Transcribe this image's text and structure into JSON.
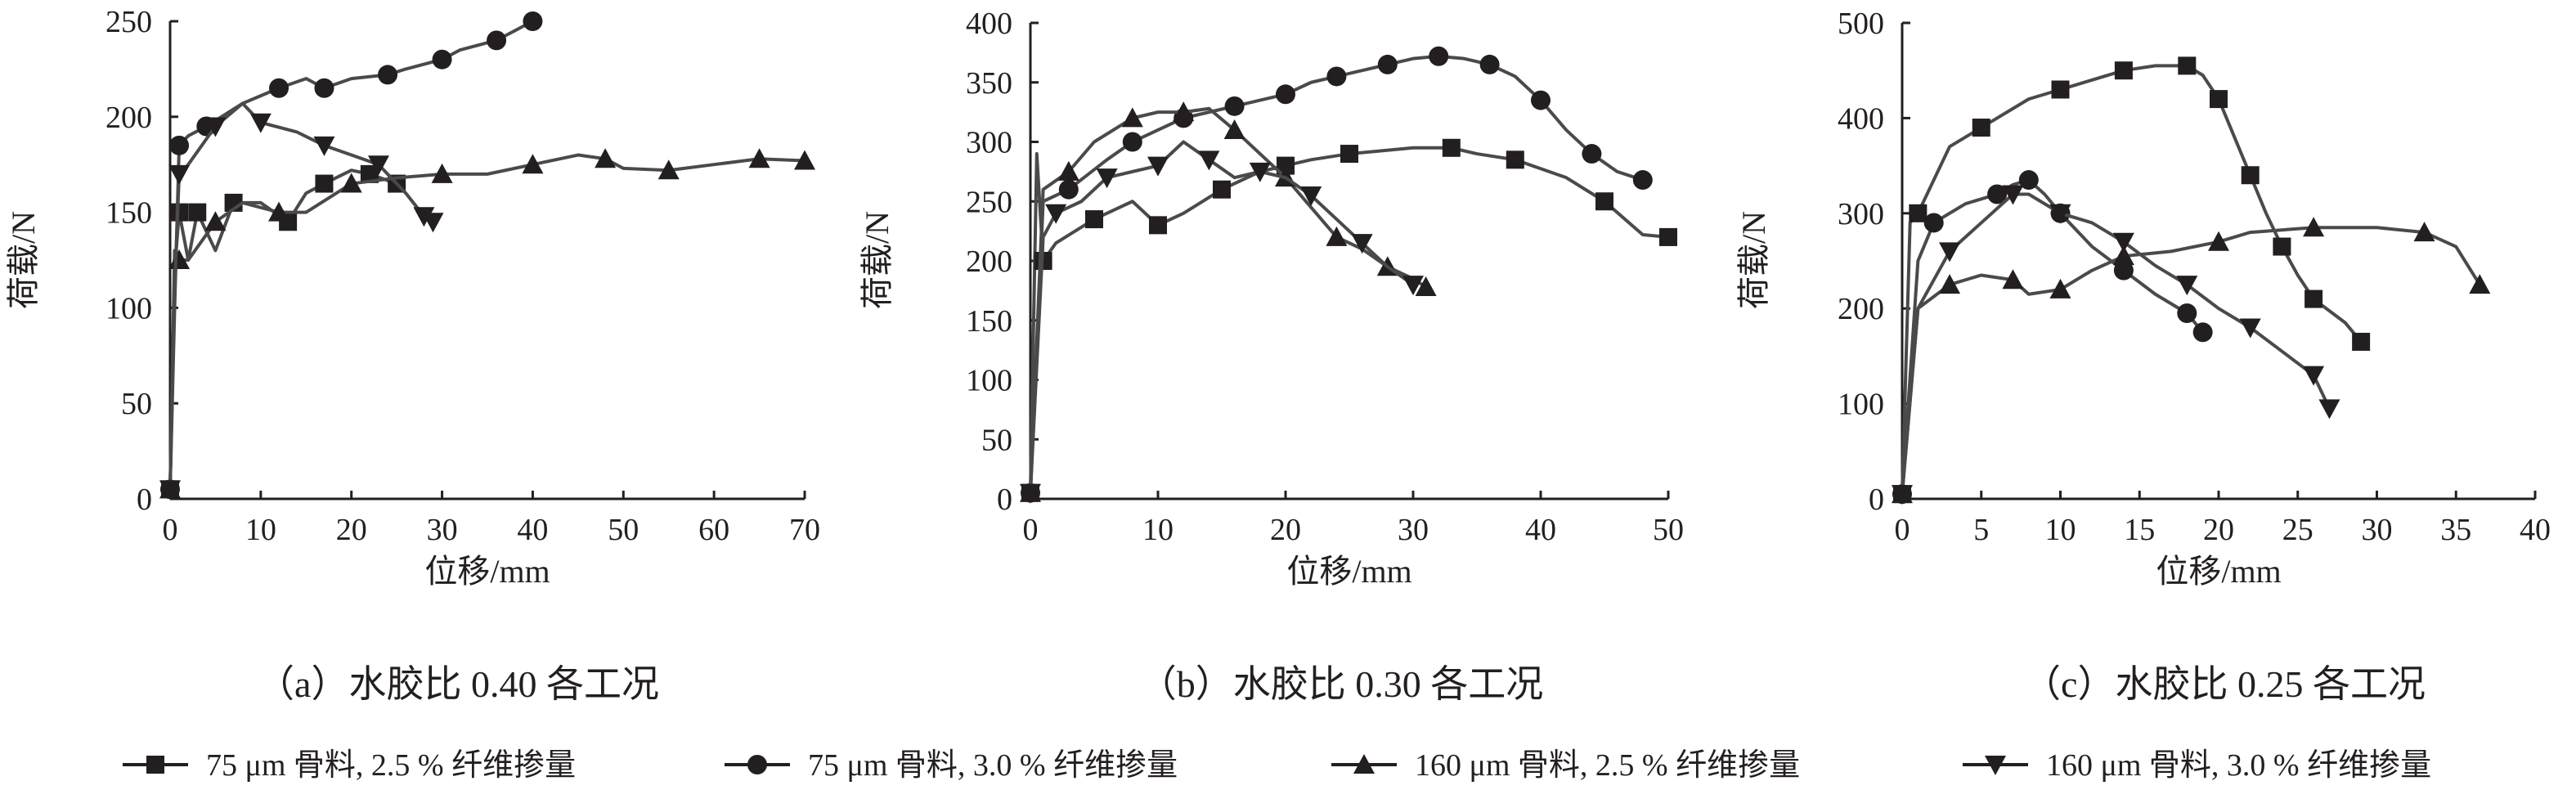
{
  "legend": [
    {
      "label": "75 μm 骨料, 2.5 % 纤维掺量",
      "marker": "square"
    },
    {
      "label": "75 μm 骨料, 3.0 % 纤维掺量",
      "marker": "circle"
    },
    {
      "label": "160 μm 骨料, 2.5 % 纤维掺量",
      "marker": "triangle"
    },
    {
      "label": "160 μm 骨料, 3.0 % 纤维掺量",
      "marker": "triangle-down"
    }
  ],
  "colors": {
    "line": "#4a4a4a",
    "marker": "#231f20",
    "axis": "#231f20"
  },
  "chart_data": [
    {
      "type": "line",
      "caption": "（a）水胶比 0.40 各工况",
      "xlabel": "位移/mm",
      "ylabel": "荷载/N",
      "xlim": [
        0,
        70
      ],
      "ylim": [
        0,
        250
      ],
      "xticks": [
        0,
        10,
        20,
        30,
        40,
        50,
        60,
        70
      ],
      "yticks": [
        0,
        50,
        100,
        150,
        200,
        250
      ],
      "grid": false,
      "series": [
        {
          "name": "75 μm 骨料, 2.5 % 纤维掺量",
          "marker": "square",
          "points": [
            [
              0,
              5
            ],
            [
              0.5,
              120
            ],
            [
              1,
              150
            ],
            [
              2,
              125
            ],
            [
              3,
              150
            ],
            [
              5,
              130
            ],
            [
              7,
              155
            ],
            [
              10,
              155
            ],
            [
              13,
              145
            ],
            [
              15,
              160
            ],
            [
              17,
              165
            ],
            [
              20,
              172
            ],
            [
              22,
              170
            ],
            [
              25,
              165
            ]
          ]
        },
        {
          "name": "75 μm 骨料, 3.0 % 纤维掺量",
          "marker": "circle",
          "points": [
            [
              0,
              5
            ],
            [
              0.5,
              100
            ],
            [
              1,
              185
            ],
            [
              2,
              190
            ],
            [
              4,
              195
            ],
            [
              8,
              207
            ],
            [
              12,
              215
            ],
            [
              15,
              220
            ],
            [
              17,
              215
            ],
            [
              20,
              220
            ],
            [
              24,
              222
            ],
            [
              26,
              225
            ],
            [
              30,
              230
            ],
            [
              32,
              235
            ],
            [
              36,
              240
            ],
            [
              40,
              250
            ]
          ]
        },
        {
          "name": "160 μm 骨料, 2.5 % 纤维掺量",
          "marker": "triangle",
          "points": [
            [
              0,
              5
            ],
            [
              0.5,
              130
            ],
            [
              1,
              125
            ],
            [
              2,
              125
            ],
            [
              5,
              145
            ],
            [
              8,
              155
            ],
            [
              12,
              150
            ],
            [
              15,
              150
            ],
            [
              20,
              165
            ],
            [
              25,
              168
            ],
            [
              30,
              170
            ],
            [
              35,
              170
            ],
            [
              40,
              175
            ],
            [
              45,
              180
            ],
            [
              48,
              178
            ],
            [
              50,
              173
            ],
            [
              55,
              172
            ],
            [
              60,
              175
            ],
            [
              65,
              178
            ],
            [
              70,
              177
            ]
          ]
        },
        {
          "name": "160 μm 骨料, 3.0 % 纤维掺量",
          "marker": "triangle-down",
          "points": [
            [
              0,
              5
            ],
            [
              0.5,
              110
            ],
            [
              1,
              170
            ],
            [
              2,
              175
            ],
            [
              5,
              195
            ],
            [
              8,
              207
            ],
            [
              10,
              197
            ],
            [
              14,
              192
            ],
            [
              17,
              185
            ],
            [
              20,
              180
            ],
            [
              23,
              175
            ],
            [
              26,
              160
            ],
            [
              28,
              148
            ],
            [
              29,
              145
            ]
          ]
        }
      ]
    },
    {
      "type": "line",
      "caption": "（b）水胶比 0.30 各工况",
      "xlabel": "位移/mm",
      "ylabel": "荷载/N",
      "xlim": [
        0,
        50
      ],
      "ylim": [
        0,
        400
      ],
      "xticks": [
        0,
        10,
        20,
        30,
        40,
        50
      ],
      "yticks": [
        0,
        50,
        100,
        150,
        200,
        250,
        300,
        350,
        400
      ],
      "grid": false,
      "series": [
        {
          "name": "75 μm 骨料, 2.5 % 纤维掺量",
          "marker": "square",
          "points": [
            [
              0,
              5
            ],
            [
              0.5,
              290
            ],
            [
              1,
              200
            ],
            [
              2,
              215
            ],
            [
              5,
              235
            ],
            [
              8,
              250
            ],
            [
              10,
              230
            ],
            [
              12,
              240
            ],
            [
              15,
              260
            ],
            [
              18,
              275
            ],
            [
              20,
              280
            ],
            [
              22,
              285
            ],
            [
              25,
              290
            ],
            [
              30,
              295
            ],
            [
              33,
              295
            ],
            [
              35,
              290
            ],
            [
              38,
              285
            ],
            [
              42,
              270
            ],
            [
              45,
              250
            ],
            [
              48,
              222
            ],
            [
              50,
              220
            ]
          ]
        },
        {
          "name": "75 μm 骨料, 3.0 % 纤维掺量",
          "marker": "circle",
          "points": [
            [
              0,
              5
            ],
            [
              1,
              250
            ],
            [
              3,
              260
            ],
            [
              6,
              285
            ],
            [
              8,
              300
            ],
            [
              10,
              310
            ],
            [
              12,
              320
            ],
            [
              14,
              325
            ],
            [
              16,
              330
            ],
            [
              18,
              335
            ],
            [
              20,
              340
            ],
            [
              22,
              350
            ],
            [
              24,
              355
            ],
            [
              26,
              360
            ],
            [
              28,
              365
            ],
            [
              30,
              370
            ],
            [
              32,
              372
            ],
            [
              34,
              370
            ],
            [
              36,
              365
            ],
            [
              38,
              355
            ],
            [
              40,
              335
            ],
            [
              42,
              310
            ],
            [
              44,
              290
            ],
            [
              46,
              275
            ],
            [
              48,
              268
            ]
          ]
        },
        {
          "name": "160 μm 骨料, 2.5 % 纤维掺量",
          "marker": "triangle",
          "points": [
            [
              0,
              5
            ],
            [
              1,
              260
            ],
            [
              3,
              275
            ],
            [
              5,
              300
            ],
            [
              8,
              320
            ],
            [
              10,
              325
            ],
            [
              12,
              325
            ],
            [
              14,
              328
            ],
            [
              16,
              310
            ],
            [
              18,
              290
            ],
            [
              20,
              270
            ],
            [
              22,
              245
            ],
            [
              24,
              220
            ],
            [
              26,
              210
            ],
            [
              28,
              195
            ],
            [
              30,
              185
            ],
            [
              31,
              178
            ]
          ]
        },
        {
          "name": "160 μm 骨料, 3.0 % 纤维掺量",
          "marker": "triangle-down",
          "points": [
            [
              0,
              5
            ],
            [
              1,
              220
            ],
            [
              2,
              240
            ],
            [
              4,
              250
            ],
            [
              6,
              270
            ],
            [
              8,
              275
            ],
            [
              10,
              280
            ],
            [
              12,
              300
            ],
            [
              14,
              285
            ],
            [
              16,
              270
            ],
            [
              18,
              275
            ],
            [
              20,
              270
            ],
            [
              22,
              255
            ],
            [
              24,
              235
            ],
            [
              26,
              215
            ],
            [
              28,
              195
            ],
            [
              30,
              180
            ]
          ]
        }
      ]
    },
    {
      "type": "line",
      "caption": "（c）水胶比 0.25 各工况",
      "xlabel": "位移/mm",
      "ylabel": "荷载/N",
      "xlim": [
        0,
        40
      ],
      "ylim": [
        0,
        500
      ],
      "xticks": [
        0,
        5,
        10,
        15,
        20,
        25,
        30,
        35,
        40
      ],
      "yticks": [
        0,
        100,
        200,
        300,
        400,
        500
      ],
      "grid": false,
      "series": [
        {
          "name": "75 μm 骨料, 2.5 % 纤维掺量",
          "marker": "square",
          "points": [
            [
              0,
              5
            ],
            [
              0.5,
              290
            ],
            [
              1,
              300
            ],
            [
              3,
              370
            ],
            [
              5,
              390
            ],
            [
              8,
              420
            ],
            [
              10,
              430
            ],
            [
              12,
              440
            ],
            [
              14,
              450
            ],
            [
              16,
              455
            ],
            [
              18,
              455
            ],
            [
              19,
              445
            ],
            [
              20,
              420
            ],
            [
              21,
              380
            ],
            [
              22,
              340
            ],
            [
              23,
              300
            ],
            [
              24,
              265
            ],
            [
              25,
              235
            ],
            [
              26,
              210
            ],
            [
              28,
              185
            ],
            [
              29,
              165
            ]
          ]
        },
        {
          "name": "75 μm 骨料, 3.0 % 纤维掺量",
          "marker": "circle",
          "points": [
            [
              0,
              5
            ],
            [
              1,
              250
            ],
            [
              2,
              290
            ],
            [
              4,
              310
            ],
            [
              6,
              320
            ],
            [
              7,
              330
            ],
            [
              8,
              335
            ],
            [
              9,
              320
            ],
            [
              10,
              300
            ],
            [
              12,
              265
            ],
            [
              14,
              240
            ],
            [
              16,
              215
            ],
            [
              18,
              195
            ],
            [
              19,
              175
            ]
          ]
        },
        {
          "name": "160 μm 骨料, 2.5 % 纤维掺量",
          "marker": "triangle",
          "points": [
            [
              0,
              5
            ],
            [
              1,
              200
            ],
            [
              3,
              225
            ],
            [
              5,
              235
            ],
            [
              7,
              230
            ],
            [
              8,
              215
            ],
            [
              10,
              220
            ],
            [
              12,
              240
            ],
            [
              14,
              255
            ],
            [
              17,
              260
            ],
            [
              20,
              270
            ],
            [
              22,
              280
            ],
            [
              26,
              285
            ],
            [
              30,
              285
            ],
            [
              33,
              280
            ],
            [
              35,
              265
            ],
            [
              36.5,
              225
            ]
          ]
        },
        {
          "name": "160 μm 骨料, 3.0 % 纤维掺量",
          "marker": "triangle-down",
          "points": [
            [
              0,
              5
            ],
            [
              1,
              200
            ],
            [
              3,
              260
            ],
            [
              5,
              290
            ],
            [
              7,
              320
            ],
            [
              8,
              320
            ],
            [
              10,
              300
            ],
            [
              12,
              290
            ],
            [
              14,
              270
            ],
            [
              16,
              245
            ],
            [
              18,
              225
            ],
            [
              20,
              200
            ],
            [
              22,
              180
            ],
            [
              24,
              155
            ],
            [
              26,
              130
            ],
            [
              27,
              95
            ]
          ]
        }
      ]
    }
  ]
}
